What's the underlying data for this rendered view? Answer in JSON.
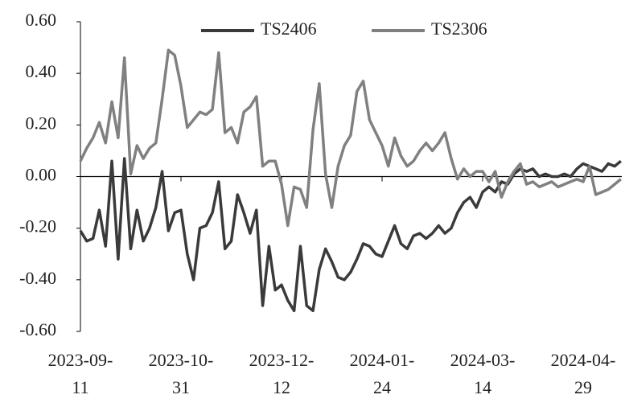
{
  "chart_data": {
    "type": "line",
    "categories": [
      "2023-09-11",
      null,
      null,
      null,
      null,
      null,
      null,
      null,
      null,
      null,
      null,
      null,
      null,
      null,
      null,
      null,
      "2023-10-31",
      null,
      null,
      null,
      null,
      null,
      null,
      null,
      null,
      null,
      null,
      null,
      null,
      null,
      null,
      null,
      "2023-12-12",
      null,
      null,
      null,
      null,
      null,
      null,
      null,
      null,
      null,
      null,
      null,
      null,
      null,
      null,
      null,
      "2024-01-24",
      null,
      null,
      null,
      null,
      null,
      null,
      null,
      null,
      null,
      null,
      null,
      null,
      null,
      null,
      null,
      "2024-03-14",
      null,
      null,
      null,
      null,
      null,
      null,
      null,
      null,
      null,
      null,
      null,
      null,
      null,
      null,
      null,
      "2024-04-29",
      null,
      null,
      null,
      null,
      null,
      null
    ],
    "series": [
      {
        "name": "TS2406",
        "color": "#3a3a3a",
        "values": [
          -0.21,
          -0.25,
          -0.24,
          -0.13,
          -0.27,
          0.06,
          -0.32,
          0.07,
          -0.28,
          -0.13,
          -0.25,
          -0.2,
          -0.12,
          0.02,
          -0.21,
          -0.14,
          -0.13,
          -0.3,
          -0.4,
          -0.2,
          -0.19,
          -0.14,
          -0.02,
          -0.28,
          -0.25,
          -0.07,
          -0.14,
          -0.22,
          -0.13,
          -0.5,
          -0.27,
          -0.44,
          -0.42,
          -0.48,
          -0.52,
          -0.27,
          -0.5,
          -0.52,
          -0.36,
          -0.28,
          -0.33,
          -0.39,
          -0.4,
          -0.37,
          -0.32,
          -0.26,
          -0.27,
          -0.3,
          -0.31,
          -0.25,
          -0.19,
          -0.26,
          -0.28,
          -0.23,
          -0.22,
          -0.24,
          -0.22,
          -0.19,
          -0.22,
          -0.2,
          -0.14,
          -0.1,
          -0.08,
          -0.12,
          -0.06,
          -0.04,
          -0.06,
          -0.02,
          -0.03,
          0.01,
          0.03,
          0.02,
          0.03,
          0.0,
          0.01,
          0.0,
          0.0,
          0.01,
          0.0,
          0.03,
          0.05,
          0.04,
          0.03,
          0.02,
          0.05,
          0.04,
          0.06
        ]
      },
      {
        "name": "TS2306",
        "color": "#808080",
        "values": [
          0.06,
          0.11,
          0.15,
          0.21,
          0.13,
          0.29,
          0.15,
          0.46,
          0.01,
          0.12,
          0.07,
          0.11,
          0.13,
          0.3,
          0.49,
          0.47,
          0.35,
          0.19,
          0.22,
          0.25,
          0.24,
          0.26,
          0.48,
          0.17,
          0.19,
          0.13,
          0.25,
          0.27,
          0.31,
          0.04,
          0.06,
          0.06,
          -0.03,
          -0.19,
          -0.04,
          -0.05,
          -0.12,
          0.18,
          0.36,
          0.01,
          -0.12,
          0.04,
          0.12,
          0.16,
          0.33,
          0.37,
          0.22,
          0.17,
          0.12,
          0.04,
          0.15,
          0.08,
          0.04,
          0.06,
          0.1,
          0.13,
          0.1,
          0.13,
          0.17,
          0.07,
          -0.01,
          0.03,
          0.0,
          0.02,
          0.02,
          -0.02,
          0.02,
          -0.08,
          -0.02,
          0.02,
          0.05,
          -0.03,
          -0.02,
          -0.04,
          -0.03,
          -0.02,
          -0.04,
          -0.03,
          -0.02,
          -0.01,
          -0.02,
          0.04,
          -0.07,
          -0.06,
          -0.05,
          -0.03,
          -0.01
        ]
      }
    ],
    "ylim": [
      -0.6,
      0.6
    ],
    "yticks": [
      {
        "value": -0.6,
        "label": "-0.60"
      },
      {
        "value": -0.4,
        "label": "-0.40"
      },
      {
        "value": -0.2,
        "label": "-0.20"
      },
      {
        "value": 0,
        "label": "0.00"
      },
      {
        "value": 0.2,
        "label": "0.20"
      },
      {
        "value": 0.4,
        "label": "0.40"
      },
      {
        "value": 0.6,
        "label": "0.60"
      }
    ],
    "legend": "upper center",
    "grid": false
  }
}
